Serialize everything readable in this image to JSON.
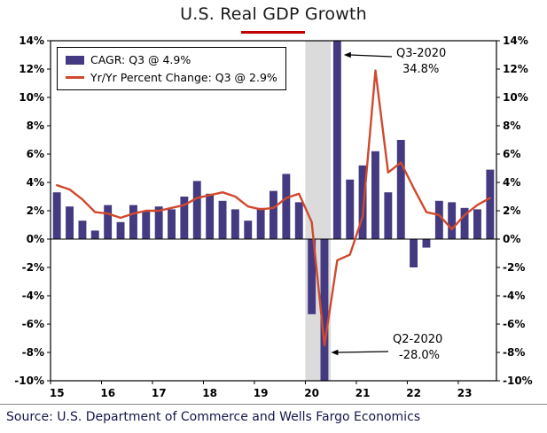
{
  "title": "U.S. Real GDP Growth",
  "source": "Source: U.S. Department of Commerce and Wells Fargo Economics",
  "legend": {
    "bar_label": "CAGR: Q3 @ 4.9%",
    "line_label": "Yr/Yr Percent Change: Q3 @ 2.9%"
  },
  "colors": {
    "bar": "#433a81",
    "line": "#d0492e",
    "recession": "#dbdbdb",
    "title_rule": "#c00000"
  },
  "chart_data": {
    "type": "combo-bar-line",
    "title": "U.S. Real GDP Growth",
    "quarters": [
      "2015Q1",
      "2015Q2",
      "2015Q3",
      "2015Q4",
      "2016Q1",
      "2016Q2",
      "2016Q3",
      "2016Q4",
      "2017Q1",
      "2017Q2",
      "2017Q3",
      "2017Q4",
      "2018Q1",
      "2018Q2",
      "2018Q3",
      "2018Q4",
      "2019Q1",
      "2019Q2",
      "2019Q3",
      "2019Q4",
      "2020Q1",
      "2020Q2",
      "2020Q3",
      "2020Q4",
      "2021Q1",
      "2021Q2",
      "2021Q3",
      "2021Q4",
      "2022Q1",
      "2022Q2",
      "2022Q3",
      "2022Q4",
      "2023Q1",
      "2023Q2",
      "2023Q3"
    ],
    "series": [
      {
        "name": "CAGR (q/q annualized %)",
        "type": "bar",
        "values": [
          3.3,
          2.3,
          1.3,
          0.6,
          2.4,
          1.2,
          2.4,
          2.0,
          2.3,
          2.1,
          3.0,
          4.1,
          3.2,
          2.7,
          2.1,
          1.3,
          2.2,
          3.4,
          4.6,
          2.6,
          -5.3,
          -28.0,
          34.8,
          4.2,
          5.2,
          6.2,
          3.3,
          7.0,
          -2.0,
          -0.6,
          2.7,
          2.6,
          2.2,
          2.1,
          4.9
        ]
      },
      {
        "name": "Yr/Yr Percent Change",
        "type": "line",
        "values": [
          3.8,
          3.5,
          2.8,
          1.9,
          1.8,
          1.5,
          1.8,
          2.0,
          2.0,
          2.2,
          2.4,
          2.9,
          3.1,
          3.3,
          3.0,
          2.3,
          2.1,
          2.2,
          2.9,
          3.2,
          1.2,
          -7.5,
          -1.5,
          -1.1,
          1.6,
          11.9,
          4.7,
          5.4,
          3.6,
          1.9,
          1.7,
          0.7,
          1.7,
          2.4,
          2.9
        ]
      }
    ],
    "ylim": [
      -10,
      14
    ],
    "ytick_step": 2,
    "ytick_suffix": "%",
    "xtick_labels": [
      "15",
      "16",
      "17",
      "18",
      "19",
      "20",
      "21",
      "22",
      "23"
    ],
    "xtick_quarter_indices": [
      0,
      4,
      8,
      12,
      16,
      20,
      24,
      28,
      32
    ],
    "grid": false,
    "legend_position": "top-left",
    "recession_bands": [
      {
        "from": "2020Q1",
        "to": "2020Q2"
      }
    ],
    "annotations": [
      {
        "lines": [
          "Q3-2020",
          "34.8%"
        ],
        "quarter": "2020Q3",
        "value": 34.8
      },
      {
        "lines": [
          "Q2-2020",
          "-28.0%"
        ],
        "quarter": "2020Q2",
        "value": -28.0
      }
    ]
  }
}
